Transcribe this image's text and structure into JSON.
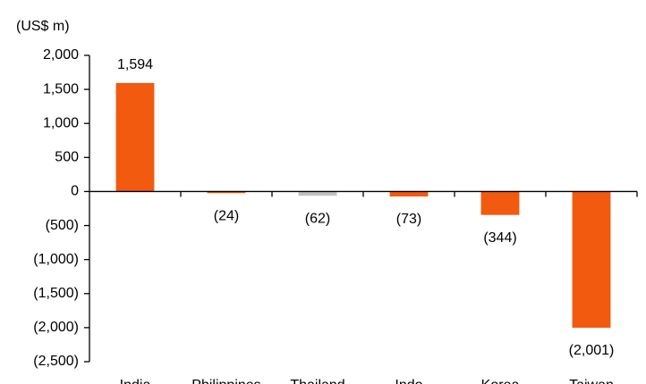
{
  "chart_data": {
    "type": "bar",
    "y_label": "(US$ m)",
    "categories": [
      "India",
      "Philippines",
      "Thailand",
      "Indo",
      "Korea",
      "Taiwan"
    ],
    "values": [
      1594,
      -24,
      -62,
      -73,
      -344,
      -2001
    ],
    "value_labels": [
      "1,594",
      "(24)",
      "(62)",
      "(73)",
      "(344)",
      "(2,001)"
    ],
    "colors": [
      "#f15a0f",
      "#f15a0f",
      "#c0c0c0",
      "#f15a0f",
      "#f15a0f",
      "#f15a0f"
    ],
    "ylim": [
      -2500,
      2000
    ],
    "yticks": [
      {
        "value": 2000,
        "label": "2,000"
      },
      {
        "value": 1500,
        "label": "1,500"
      },
      {
        "value": 1000,
        "label": "1,000"
      },
      500,
      0,
      {
        "value": -500,
        "label": "(500)"
      },
      {
        "value": -1000,
        "label": "(1,000)"
      },
      {
        "value": -1500,
        "label": "(1,500)"
      },
      {
        "value": -2000,
        "label": "(2,000)"
      },
      {
        "value": -2500,
        "label": "(2,500)"
      }
    ],
    "grid": false
  }
}
